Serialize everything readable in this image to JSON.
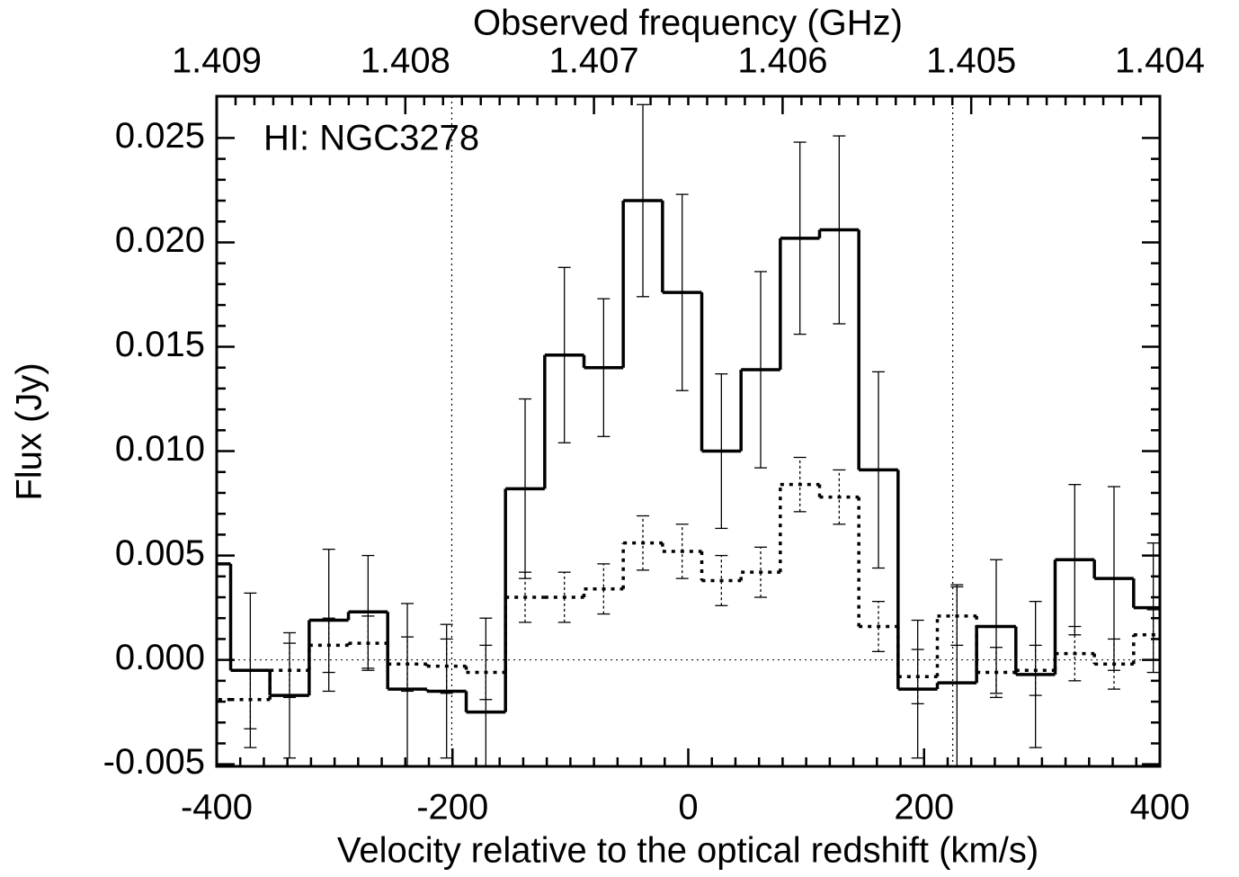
{
  "chart_data": {
    "type": "step",
    "annotation": "HI: NGC3278",
    "xlabel": "Velocity relative to the optical redshift (km/s)",
    "ylabel": "Flux (Jy)",
    "x2label": "Observed frequency (GHz)",
    "xlim": [
      -400,
      400
    ],
    "xticks": [
      -400,
      -200,
      0,
      200,
      400
    ],
    "x2lim": [
      1.409,
      1.404
    ],
    "x2ticks": [
      1.409,
      1.408,
      1.407,
      1.406,
      1.405,
      1.404
    ],
    "ylim": [
      -0.0051,
      0.027
    ],
    "yticks": [
      -0.005,
      {
        "value": 0,
        "label": "0.000"
      },
      0.005,
      {
        "value": 0.01,
        "label": "0.010"
      },
      0.015,
      {
        "value": 0.02,
        "label": "0.020"
      },
      0.025
    ],
    "vlines": [
      -200.6,
      224.3
    ],
    "hline": 0,
    "x": [
      -404.8,
      -371.5,
      -338.2,
      -304.9,
      -271.6,
      -238.3,
      -205.0,
      -171.7,
      -138.4,
      -105.1,
      -71.8,
      -38.5,
      -5.2,
      28.1,
      61.4,
      94.7,
      128.0,
      161.3,
      194.6,
      227.9,
      261.2,
      294.5,
      327.8,
      361.1,
      394.4
    ],
    "series": [
      {
        "style": "solid",
        "color": "#000000",
        "values": [
          0.0046,
          -0.0005,
          -0.0017,
          0.0019,
          0.0023,
          -0.0014,
          -0.0015,
          -0.0025,
          0.0082,
          0.0146,
          0.014,
          0.022,
          0.0176,
          0.01,
          0.0139,
          0.0202,
          0.0206,
          0.0091,
          -0.0014,
          -0.0011,
          0.0016,
          -0.0007,
          0.0048,
          0.0039,
          0.0025
        ],
        "errors": [
          0.0037,
          0.0037,
          0.003,
          0.0034,
          0.0027,
          0.0041,
          0.0032,
          0.0045,
          0.0043,
          0.0042,
          0.0033,
          0.0046,
          0.0047,
          0.0037,
          0.0047,
          0.0046,
          0.0045,
          0.0047,
          0.0033,
          0.0047,
          0.0032,
          0.0035,
          0.0036,
          0.0044,
          0.0031
        ]
      },
      {
        "style": "dotted",
        "color": "#000000",
        "values": [
          -0.0019,
          -0.0019,
          -0.0005,
          0.0007,
          0.0008,
          -0.0002,
          -0.0003,
          -0.0006,
          0.003,
          0.003,
          0.0034,
          0.0056,
          0.0052,
          0.0038,
          0.0042,
          0.0084,
          0.0078,
          0.0016,
          -0.0008,
          0.0021,
          -0.0006,
          -0.0005,
          0.0003,
          -0.0002,
          0.0012
        ],
        "errors": [
          0.0014,
          0.0014,
          0.0013,
          0.0013,
          0.0013,
          0.0013,
          0.0013,
          0.0013,
          0.0012,
          0.0012,
          0.0012,
          0.0013,
          0.0013,
          0.0012,
          0.0012,
          0.0013,
          0.0013,
          0.0012,
          0.0013,
          0.0014,
          0.0012,
          0.0012,
          0.0013,
          0.0012,
          0.0012
        ]
      }
    ]
  }
}
